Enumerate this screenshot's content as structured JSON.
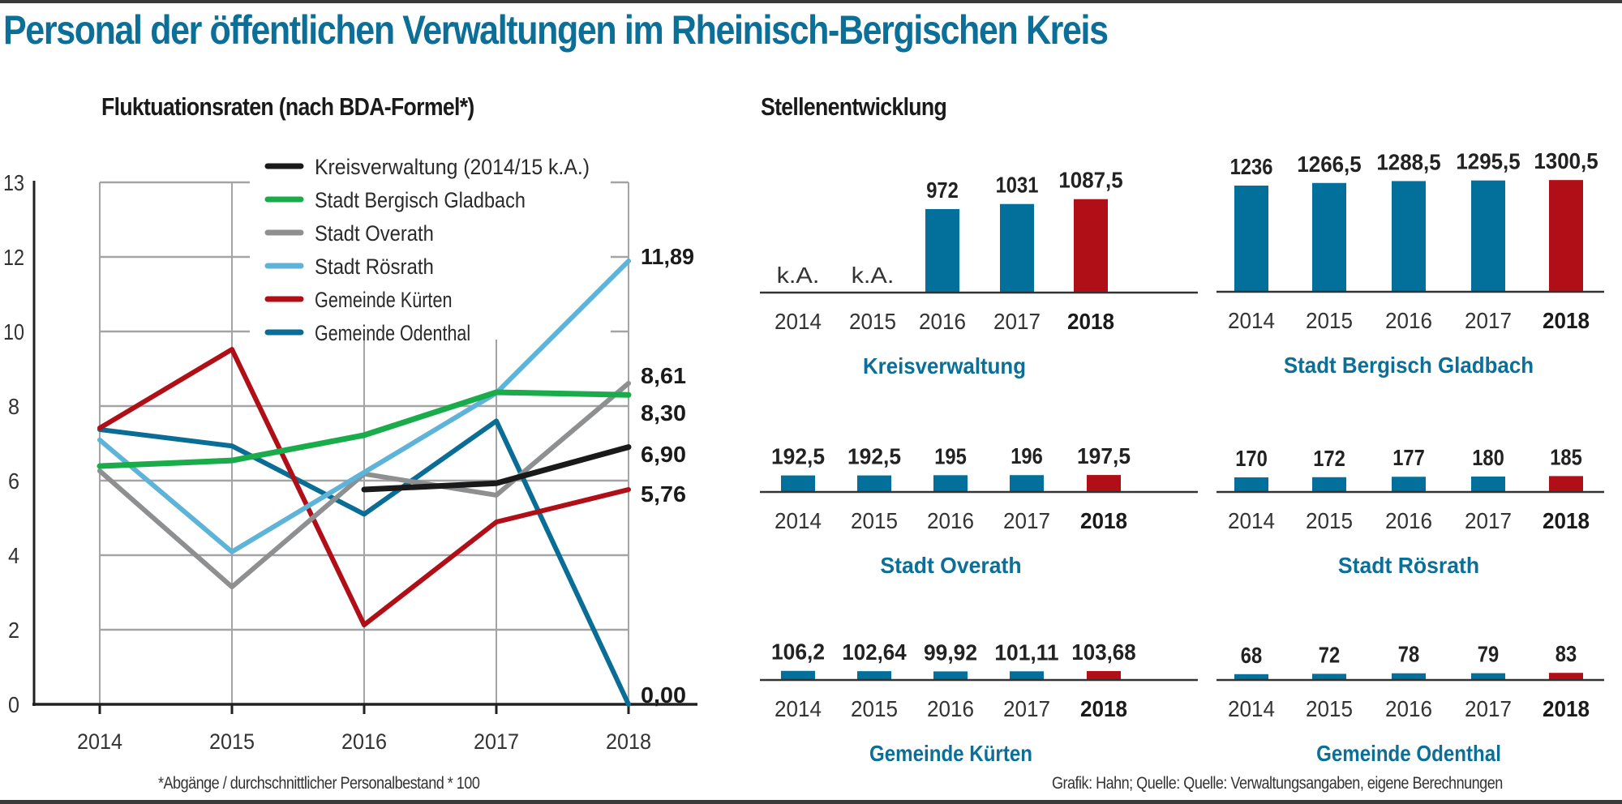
{
  "header": {
    "title": "Personal der öffentlichen Verwaltungen im Rheinisch-Bergischen Kreis"
  },
  "footnotes": {
    "left": "*Abgänge / durchschnittlicher Personalbestand * 100",
    "right": "Grafik: Hahn; Quelle: Quelle: Verwaltungsangaben, eigene Berechnungen"
  },
  "colors": {
    "title": "#0b6f97",
    "bar": "#03709b",
    "bar_highlight": "#b10f17",
    "panel_label": "#0b6f97"
  },
  "chart_data": [
    {
      "type": "line",
      "title": "Fluktuationsraten (nach BDA-Formel*)",
      "xlabel": "",
      "ylabel": "",
      "x": [
        "2014",
        "2015",
        "2016",
        "2017",
        "2018"
      ],
      "yticks": [
        0,
        2,
        4,
        6,
        8,
        10,
        12,
        13
      ],
      "ylim": [
        0,
        13
      ],
      "grid": true,
      "legend_position": "top-center",
      "series": [
        {
          "name": "Kreisverwaltung (2014/15 k.A.)",
          "color": "#1a1a1a",
          "values": [
            null,
            null,
            5.76,
            5.93,
            6.9
          ],
          "end_label": "6,90"
        },
        {
          "name": "Stadt Bergisch Gladbach",
          "color": "#1aab4b",
          "values": [
            6.39,
            6.54,
            7.22,
            8.37,
            8.3
          ],
          "end_label": "8,30"
        },
        {
          "name": "Stadt Overath",
          "color": "#8e8f91",
          "values": [
            6.26,
            3.15,
            6.18,
            5.61,
            8.61
          ],
          "end_label": "8,61"
        },
        {
          "name": "Stadt Rösrath",
          "color": "#5db3d8",
          "values": [
            7.09,
            4.09,
            6.22,
            8.35,
            11.89
          ],
          "end_label": "11,89"
        },
        {
          "name": "Gemeinde Kürten",
          "color": "#b10f17",
          "values": [
            7.41,
            9.52,
            2.13,
            4.89,
            5.76
          ],
          "end_label": "5,76"
        },
        {
          "name": "Gemeinde Odenthal",
          "color": "#0a6d96",
          "values": [
            7.37,
            6.93,
            5.1,
            7.6,
            0.0
          ],
          "end_label": "0,00"
        }
      ]
    },
    {
      "type": "bar",
      "title": "Stellenentwicklung",
      "categories": [
        "2014",
        "2015",
        "2016",
        "2017",
        "2018"
      ],
      "highlight_category": "2018",
      "panels": [
        {
          "name": "Kreisverwaltung",
          "values": [
            null,
            null,
            972,
            1031,
            1087.5
          ],
          "labels": [
            "k.A.",
            "k.A.",
            "972",
            "1031",
            "1087,5"
          ]
        },
        {
          "name": "Stadt Bergisch Gladbach",
          "values": [
            1236,
            1266.5,
            1288.5,
            1295.5,
            1300.5
          ],
          "labels": [
            "1236",
            "1266,5",
            "1288,5",
            "1295,5",
            "1300,5"
          ]
        },
        {
          "name": "Stadt Overath",
          "values": [
            192.5,
            192.5,
            195,
            196,
            197.5
          ],
          "labels": [
            "192,5",
            "192,5",
            "195",
            "196",
            "197,5"
          ]
        },
        {
          "name": "Stadt Rösrath",
          "values": [
            170,
            172,
            177,
            180,
            185
          ],
          "labels": [
            "170",
            "172",
            "177",
            "180",
            "185"
          ]
        },
        {
          "name": "Gemeinde Kürten",
          "values": [
            106.2,
            102.64,
            99.92,
            101.11,
            103.68
          ],
          "labels": [
            "106,2",
            "102,64",
            "99,92",
            "101,11",
            "103,68"
          ]
        },
        {
          "name": "Gemeinde Odenthal",
          "values": [
            68,
            72,
            78,
            79,
            83
          ],
          "labels": [
            "68",
            "72",
            "78",
            "79",
            "83"
          ]
        }
      ]
    }
  ]
}
